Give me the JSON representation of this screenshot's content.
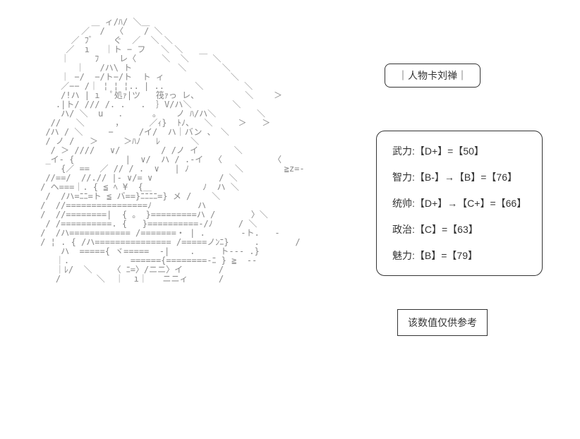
{
  "title_card": {
    "text": "｜人物卡刘禅｜"
  },
  "stats": [
    {
      "label": "武力",
      "text": "武力:【D+】=【50】"
    },
    {
      "label": "智力",
      "text": "智力:【B-】→【B】=【76】"
    },
    {
      "label": "统帅",
      "text": "统帅:【D+】→【C+】=【66】"
    },
    {
      "label": "政治",
      "text": "政治:【C】=【63】"
    },
    {
      "label": "魅力",
      "text": "魅力:【B】=【79】"
    }
  ],
  "note": {
    "text": "该数值仅供参考"
  },
  "ascii": "           ＿ ィ/ﾊ/ ＼＿\n         ／  /  〈    / ＼\n       ／ ﾌﾞ    ぐ  ／  ＼ ＼\n      ／  ı   ｜ト − フ   ＼ ＼\n     ｜     ﾌ    レ〈     ＼  ＼  ￣ ＼\n        ｜   /ハ\\ ト         ＼       ＼\n     ｜ −/  −/ト−/ト  ト ィ             ＼\n     ／−− /｜ ¦ ¦ ¦.. | ..      ＼        ＼\n     /!ハ | ı  ﾟ処ｧ|ツ   筏ｧっ レ、         ＼    ＞\n    .|ト/ /// /. .   .  ｝V/ハ＼        ＼\n     ハ/ ＼  u   ．     。   ノ ﾊ/ハ＼        ＼\n   //   ＼      ，     ／ｨ}  ﾄﾉ、  ＼     ＞   ＞\n  /ハ / ＼     −     /イ/  ハ｜バン 、 ＼\n  / ノ /   ＞     ＞ﾊﾉ   ﾚ      ＼\n   / ＞ ////   ∨/        / /ノ イ       ＼\n  _イ- {          |  ∨/  ハ / .-イ  〈          〈\n     {／ ==  ／ // / .  ∨   | ﾉ         ＼        ≧z=-\n  //==/  //.// |- ∨/= ∨             / ＼\n / ヘ===｜. { ≦ ﾍ ¥  {＿          ﾉ  ハ ＼\n  /  /ハ=ﾆﾆ=ト ≦ バ==}ﾆﾆﾆﾆ=} メ /    ＼\n /  //================ﾉ         ハ\n /  //========|  { 。 }=========ハ /       〉＼\n  / /==========. {   }==========-/ﾉ     / ＼\n /  /ハ============ /=======・ | .       -ト.   -\n / ¦ . { /ハ=============== /=====ノﾝﾆ}     .       /\n     ハ  ====={ ヾ=====  -|    .     ト--- .}\n    ｜.            ======{========-ﾆ } ≧  --\n    ｜ﾚ/  ＼    〈 ﾆ=〉/ニニ〉イ       /\n    /       ＼  ｜  ı｜   ニニィ      /"
}
